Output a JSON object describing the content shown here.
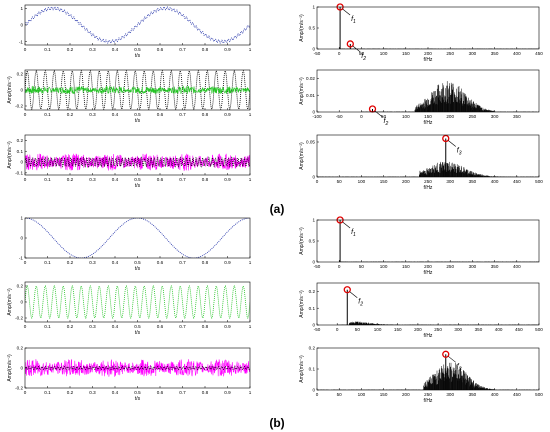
{
  "panel_labels": {
    "a": "(a)",
    "b": "(b)"
  },
  "colors": {
    "blue": "#1f2fa8",
    "green": "#22c422",
    "magenta": "#ff00ff",
    "black": "#000000",
    "red": "#e00000"
  },
  "chart_data": [
    {
      "id": "a1",
      "type": "line",
      "xlabel": "t/s",
      "ylabel": "",
      "xlim": [
        0,
        1
      ],
      "xticks": [
        0,
        0.1,
        0.2,
        0.3,
        0.4,
        0.5,
        0.6,
        0.7,
        0.8,
        0.9,
        1
      ],
      "xtick_labels": [
        "0",
        "0.1",
        "0.2",
        "0.3",
        "0.4",
        "0.5",
        "0.6",
        "0.7",
        "0.8",
        "0.9",
        "1"
      ],
      "ylim": [
        -1.2,
        1.2
      ],
      "yticks": [
        -1,
        0,
        1
      ],
      "ytick_labels": [
        "-1",
        "0",
        "1"
      ],
      "series": [
        {
          "style": "blue-dotted",
          "signal": "sine",
          "freq": 2,
          "amp": 1,
          "ripple_freq": 70,
          "ripple_amp": 0.09
        }
      ]
    },
    {
      "id": "a2",
      "type": "line",
      "xlabel": "t/s",
      "ylabel": "Amp/(m/s⁻²)",
      "xlim": [
        0,
        1
      ],
      "xticks": [
        0,
        0.1,
        0.2,
        0.3,
        0.4,
        0.5,
        0.6,
        0.7,
        0.8,
        0.9,
        1
      ],
      "xtick_labels": [
        "0",
        "0.1",
        "0.2",
        "0.3",
        "0.4",
        "0.5",
        "0.6",
        "0.7",
        "0.8",
        "0.9",
        "1"
      ],
      "ylim": [
        -0.25,
        0.25
      ],
      "yticks": [
        -0.2,
        0,
        0.2
      ],
      "ytick_labels": [
        "-0.2",
        "0",
        "0.2"
      ],
      "series": [
        {
          "style": "black-dotted",
          "signal": "sine",
          "freq": 25,
          "amp": 0.24
        },
        {
          "style": "green-noise",
          "signal": "noise",
          "amp": 0.05
        }
      ]
    },
    {
      "id": "a3",
      "type": "line",
      "xlabel": "t/s",
      "ylabel": "Amp/(m/s⁻²)",
      "xlim": [
        0,
        1
      ],
      "xticks": [
        0,
        0.1,
        0.2,
        0.3,
        0.4,
        0.5,
        0.6,
        0.7,
        0.8,
        0.9,
        1
      ],
      "xtick_labels": [
        "0",
        "0.1",
        "0.2",
        "0.3",
        "0.4",
        "0.5",
        "0.6",
        "0.7",
        "0.8",
        "0.9",
        "1"
      ],
      "ylim": [
        -0.12,
        0.25
      ],
      "yticks": [
        -0.1,
        0,
        0.1,
        0.2
      ],
      "ytick_labels": [
        "-0.1",
        "0",
        "0.1",
        "0.2"
      ],
      "series": [
        {
          "style": "magenta-noise",
          "signal": "noise",
          "amp": 0.08
        },
        {
          "style": "black-dotted",
          "signal": "sine",
          "freq": 70,
          "amp": 0.04
        }
      ]
    },
    {
      "id": "a4",
      "type": "spectrum",
      "xlabel": "f/Hz",
      "ylabel": "Amp/(m/s⁻²)",
      "xlim": [
        -50,
        450
      ],
      "xticks": [
        -50,
        0,
        50,
        100,
        150,
        200,
        250,
        300,
        350,
        400,
        450
      ],
      "xtick_labels": [
        "-50",
        "0",
        "50",
        "100",
        "150",
        "200",
        "250",
        "300",
        "350",
        "400",
        "450"
      ],
      "ylim": [
        0,
        1
      ],
      "yticks": [
        0,
        0.5,
        1
      ],
      "ytick_labels": [
        "0",
        "0.5",
        "1"
      ],
      "peaks": [
        {
          "f": 2,
          "amp": 1.0,
          "label": "f",
          "sub": "1"
        },
        {
          "f": 25,
          "amp": 0.12,
          "label": "f",
          "sub": "2"
        }
      ]
    },
    {
      "id": "a5",
      "type": "spectrum",
      "xlabel": "f/Hz",
      "ylabel": "Amp/(m/s⁻²)",
      "xlim": [
        -100,
        400
      ],
      "xticks": [
        -100,
        -50,
        0,
        50,
        100,
        150,
        200,
        250,
        300,
        350
      ],
      "xtick_labels": [
        "-100",
        "-50",
        "0",
        "50",
        "100",
        "150",
        "200",
        "250",
        "300",
        "350"
      ],
      "ylim": [
        0,
        0.025
      ],
      "yticks": [
        0,
        0.01,
        0.02
      ],
      "ytick_labels": [
        "0",
        "0.01",
        "0.02"
      ],
      "peaks": [
        {
          "f": 25,
          "amp": 0.0018,
          "label": "f",
          "sub": "2"
        }
      ],
      "band": {
        "from": 120,
        "to": 300,
        "center": 195,
        "peak": 0.019
      }
    },
    {
      "id": "a6",
      "type": "spectrum",
      "xlabel": "f/Hz",
      "ylabel": "Amp/(m/s⁻²)",
      "xlim": [
        0,
        500
      ],
      "xticks": [
        0,
        50,
        100,
        150,
        200,
        250,
        300,
        350,
        400,
        450,
        500
      ],
      "xtick_labels": [
        "0",
        "50",
        "100",
        "150",
        "200",
        "250",
        "300",
        "350",
        "400",
        "450",
        "500"
      ],
      "ylim": [
        0,
        0.06
      ],
      "yticks": [
        0,
        0.05
      ],
      "ytick_labels": [
        "0",
        "0.05"
      ],
      "peaks": [
        {
          "f": 290,
          "amp": 0.055,
          "label": "f",
          "sub": "3"
        }
      ],
      "band": {
        "from": 230,
        "to": 420,
        "center": 290,
        "peak": 0.022
      }
    },
    {
      "id": "b1",
      "type": "line",
      "xlabel": "t/s",
      "ylabel": "",
      "xlim": [
        0,
        1
      ],
      "xticks": [
        0,
        0.1,
        0.2,
        0.3,
        0.4,
        0.5,
        0.6,
        0.7,
        0.8,
        0.9,
        1
      ],
      "xtick_labels": [
        "0",
        "0.1",
        "0.2",
        "0.3",
        "0.4",
        "0.5",
        "0.6",
        "0.7",
        "0.8",
        "0.9",
        "1"
      ],
      "ylim": [
        -1,
        1
      ],
      "yticks": [
        -1,
        0,
        1
      ],
      "ytick_labels": [
        "-1",
        "0",
        "1"
      ],
      "series": [
        {
          "style": "blue-dotted",
          "signal": "sine",
          "freq": 2,
          "amp": 1,
          "phase": 1.5708
        }
      ]
    },
    {
      "id": "b2",
      "type": "line",
      "xlabel": "t/s",
      "ylabel": "Amp/(m/s⁻²)",
      "xlim": [
        0,
        1
      ],
      "xticks": [
        0,
        0.1,
        0.2,
        0.3,
        0.4,
        0.5,
        0.6,
        0.7,
        0.8,
        0.9,
        1
      ],
      "xtick_labels": [
        "0",
        "0.1",
        "0.2",
        "0.3",
        "0.4",
        "0.5",
        "0.6",
        "0.7",
        "0.8",
        "0.9",
        "1"
      ],
      "ylim": [
        -0.25,
        0.25
      ],
      "yticks": [
        -0.2,
        0,
        0.2
      ],
      "ytick_labels": [
        "-0.2",
        "0",
        "0.2"
      ],
      "series": [
        {
          "style": "green-dotted",
          "signal": "sine",
          "freq": 25,
          "amp": 0.2
        }
      ]
    },
    {
      "id": "b3",
      "type": "line",
      "xlabel": "t/s",
      "ylabel": "Amp/(m/s⁻²)",
      "xlim": [
        0,
        1
      ],
      "xticks": [
        0,
        0.1,
        0.2,
        0.3,
        0.4,
        0.5,
        0.6,
        0.7,
        0.8,
        0.9,
        1
      ],
      "xtick_labels": [
        "0",
        "0.1",
        "0.2",
        "0.3",
        "0.4",
        "0.5",
        "0.6",
        "0.7",
        "0.8",
        "0.9",
        "1"
      ],
      "ylim": [
        -0.2,
        0.2
      ],
      "yticks": [
        -0.2,
        0,
        0.2
      ],
      "ytick_labels": [
        "-0.2",
        "0",
        "0.2"
      ],
      "series": [
        {
          "style": "magenta-noise",
          "signal": "noise",
          "amp": 0.09
        },
        {
          "style": "black-dotted",
          "signal": "sine",
          "freq": 70,
          "amp": 0.015
        }
      ]
    },
    {
      "id": "b4",
      "type": "spectrum",
      "xlabel": "f/Hz",
      "ylabel": "Amp/(m/s⁻²)",
      "xlim": [
        -50,
        450
      ],
      "xticks": [
        -50,
        0,
        50,
        100,
        150,
        200,
        250,
        300,
        350,
        400
      ],
      "xtick_labels": [
        "-50",
        "0",
        "50",
        "100",
        "150",
        "200",
        "250",
        "300",
        "350",
        "400"
      ],
      "ylim": [
        0,
        1
      ],
      "yticks": [
        0,
        0.5,
        1
      ],
      "ytick_labels": [
        "0",
        "0.5",
        "1"
      ],
      "peaks": [
        {
          "f": 2,
          "amp": 1.0,
          "label": "f",
          "sub": "1"
        }
      ]
    },
    {
      "id": "b5",
      "type": "spectrum",
      "xlabel": "f/Hz",
      "ylabel": "Amp/(m/s⁻²)",
      "xlim": [
        -50,
        500
      ],
      "xticks": [
        -50,
        0,
        50,
        100,
        150,
        200,
        250,
        300,
        350,
        400,
        450,
        500
      ],
      "xtick_labels": [
        "-50",
        "0",
        "50",
        "100",
        "150",
        "200",
        "250",
        "300",
        "350",
        "400",
        "450",
        "500"
      ],
      "ylim": [
        0,
        0.25
      ],
      "yticks": [
        0,
        0.1,
        0.2
      ],
      "ytick_labels": [
        "0",
        "0.1",
        "0.2"
      ],
      "peaks": [
        {
          "f": 25,
          "amp": 0.21,
          "label": "f",
          "sub": "2"
        }
      ],
      "band": {
        "from": 30,
        "to": 200,
        "center": 40,
        "peak": 0.02
      }
    },
    {
      "id": "b6",
      "type": "spectrum",
      "xlabel": "f/Hz",
      "ylabel": "Amp/(m/s⁻²)",
      "xlim": [
        0,
        500
      ],
      "xticks": [
        0,
        50,
        100,
        150,
        200,
        250,
        300,
        350,
        400,
        450,
        500
      ],
      "xtick_labels": [
        "0",
        "50",
        "100",
        "150",
        "200",
        "250",
        "300",
        "350",
        "400",
        "450",
        "500"
      ],
      "ylim": [
        0,
        0.2
      ],
      "yticks": [
        0,
        0.1,
        0.2
      ],
      "ytick_labels": [
        "0",
        "0.1",
        "0.2"
      ],
      "peaks": [
        {
          "f": 290,
          "amp": 0.17,
          "label": "f",
          "sub": "3"
        }
      ],
      "band": {
        "from": 240,
        "to": 400,
        "center": 300,
        "peak": 0.14
      }
    }
  ]
}
